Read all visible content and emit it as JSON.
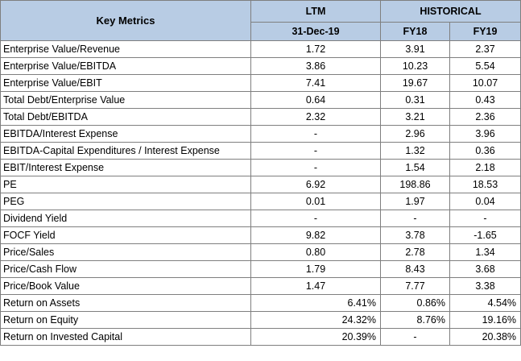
{
  "header": {
    "key_metrics": "Key Metrics",
    "ltm": "LTM",
    "historical": "HISTORICAL",
    "ltm_date": "31-Dec-19",
    "fy18": "FY18",
    "fy19": "FY19"
  },
  "rows": [
    {
      "metric": "Enterprise Value/Revenue",
      "ltm": "1.72",
      "fy18": "3.91",
      "fy19": "2.37"
    },
    {
      "metric": "Enterprise Value/EBITDA",
      "ltm": "3.86",
      "fy18": "10.23",
      "fy19": "5.54"
    },
    {
      "metric": "Enterprise Value/EBIT",
      "ltm": "7.41",
      "fy18": "19.67",
      "fy19": "10.07"
    },
    {
      "metric": "Total Debt/Enterprise Value",
      "ltm": "0.64",
      "fy18": "0.31",
      "fy19": "0.43"
    },
    {
      "metric": "Total Debt/EBITDA",
      "ltm": "2.32",
      "fy18": "3.21",
      "fy19": "2.36"
    },
    {
      "metric": "EBITDA/Interest Expense",
      "ltm": "-",
      "fy18": "2.96",
      "fy19": "3.96"
    },
    {
      "metric": "EBITDA-Capital Expenditures / Interest Expense",
      "ltm": "-",
      "fy18": "1.32",
      "fy19": "0.36"
    },
    {
      "metric": "EBIT/Interest Expense",
      "ltm": "-",
      "fy18": "1.54",
      "fy19": "2.18"
    },
    {
      "metric": "PE",
      "ltm": "6.92",
      "fy18": "198.86",
      "fy19": "18.53"
    },
    {
      "metric": "PEG",
      "ltm": "0.01",
      "fy18": "1.97",
      "fy19": "0.04"
    },
    {
      "metric": "Dividend Yield",
      "ltm": "-",
      "fy18": "-",
      "fy19": "-"
    },
    {
      "metric": "FOCF Yield",
      "ltm": "9.82",
      "fy18": "3.78",
      "fy19": "-1.65"
    },
    {
      "metric": "Price/Sales",
      "ltm": "0.80",
      "fy18": "2.78",
      "fy19": "1.34"
    },
    {
      "metric": "Price/Cash Flow",
      "ltm": "1.79",
      "fy18": "8.43",
      "fy19": "3.68"
    },
    {
      "metric": "Price/Book Value",
      "ltm": "1.47",
      "fy18": "7.77",
      "fy19": "3.38"
    },
    {
      "metric": "Return on Assets",
      "ltm": "6.41%",
      "fy18": "0.86%",
      "fy19": "4.54%"
    },
    {
      "metric": "Return on Equity",
      "ltm": "24.32%",
      "fy18": "8.76%",
      "fy19": "19.16%"
    },
    {
      "metric": "Return on Invested Capital",
      "ltm": "20.39%",
      "fy18": "-",
      "fy19": "20.38%"
    }
  ]
}
